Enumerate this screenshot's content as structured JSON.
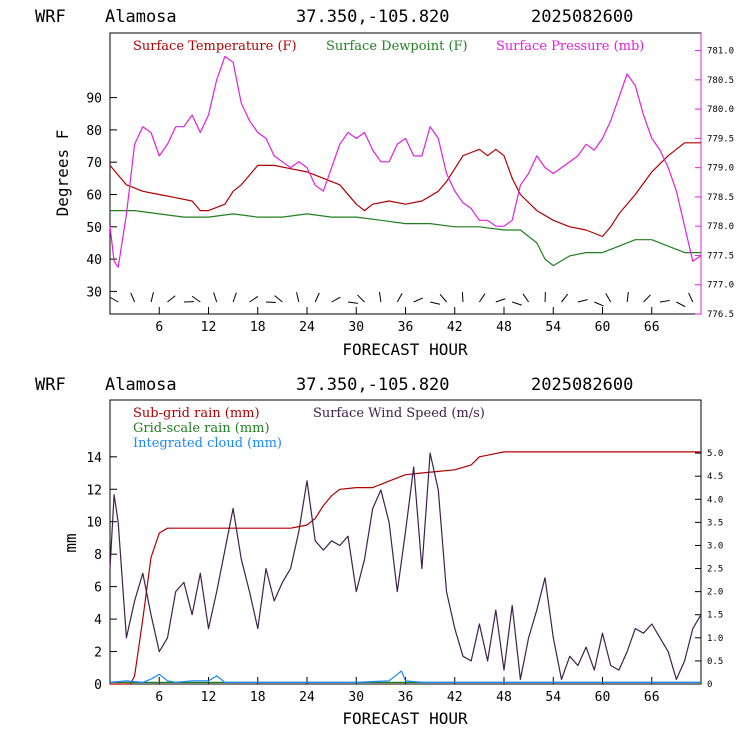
{
  "chart_data": [
    {
      "type": "line",
      "header": {
        "model": "WRF",
        "location": "Alamosa",
        "coords": "37.350,-105.820",
        "run": "2025082600"
      },
      "xlabel": "FORECAST HOUR",
      "ylabel": "Degrees F",
      "xlim": [
        0,
        72
      ],
      "ylim": [
        23,
        110
      ],
      "y2lim": [
        776.5,
        781.3
      ],
      "xticks": [
        "6",
        "12",
        "18",
        "24",
        "30",
        "36",
        "42",
        "48",
        "54",
        "60",
        "66"
      ],
      "yticks": [
        "30",
        "40",
        "50",
        "60",
        "70",
        "80",
        "90"
      ],
      "y2ticks": [
        "776.5",
        "777.0",
        "777.5",
        "778.0",
        "778.5",
        "779.0",
        "779.5",
        "780.0",
        "780.5",
        "781.0"
      ],
      "colors": {
        "temperature": "#b00000",
        "dewpoint": "#208020",
        "pressure": "#e020e0"
      },
      "series": [
        {
          "name": "Surface Temperature (F)",
          "axis": "left",
          "x": [
            0,
            1,
            2,
            4,
            6,
            8,
            10,
            11,
            12,
            14,
            15,
            16,
            17,
            18,
            20,
            22,
            24,
            26,
            28,
            30,
            31,
            32,
            34,
            36,
            38,
            40,
            41,
            42,
            43,
            44,
            45,
            46,
            47,
            48,
            49,
            50,
            52,
            54,
            56,
            58,
            60,
            61,
            62,
            64,
            66,
            68,
            70,
            72
          ],
          "y": [
            69,
            66,
            63,
            61,
            60,
            59,
            58,
            55,
            55,
            57,
            61,
            63,
            66,
            69,
            69,
            68,
            67,
            65,
            63,
            57,
            55,
            57,
            58,
            57,
            58,
            61,
            64,
            68,
            72,
            73,
            74,
            72,
            74,
            72,
            65,
            60,
            55,
            52,
            50,
            49,
            47,
            50,
            54,
            60,
            67,
            72,
            76,
            76
          ]
        },
        {
          "name": "Surface Dewpoint (F)",
          "axis": "left",
          "x": [
            0,
            3,
            6,
            9,
            12,
            15,
            18,
            21,
            24,
            27,
            30,
            33,
            36,
            39,
            42,
            45,
            48,
            50,
            52,
            53,
            54,
            56,
            58,
            60,
            62,
            64,
            66,
            68,
            70,
            72
          ],
          "y": [
            55,
            55,
            54,
            53,
            53,
            54,
            53,
            53,
            54,
            53,
            53,
            52,
            51,
            51,
            50,
            50,
            49,
            49,
            45,
            40,
            38,
            41,
            42,
            42,
            44,
            46,
            46,
            44,
            42,
            42
          ]
        },
        {
          "name": "Surface Pressure (mb)",
          "axis": "right",
          "x": [
            0,
            0.5,
            1,
            2,
            3,
            4,
            5,
            6,
            7,
            8,
            9,
            10,
            11,
            12,
            13,
            14,
            15,
            16,
            17,
            18,
            19,
            20,
            21,
            22,
            23,
            24,
            25,
            26,
            27,
            28,
            29,
            30,
            31,
            32,
            33,
            34,
            35,
            36,
            37,
            38,
            39,
            40,
            41,
            42,
            43,
            44,
            45,
            46,
            47,
            48,
            49,
            50,
            51,
            52,
            53,
            54,
            55,
            56,
            57,
            58,
            59,
            60,
            61,
            62,
            63,
            64,
            65,
            66,
            67,
            68,
            69,
            70,
            71,
            72
          ],
          "y": [
            778.0,
            777.4,
            777.3,
            778.2,
            779.4,
            779.7,
            779.6,
            779.2,
            779.4,
            779.7,
            779.7,
            779.9,
            779.6,
            779.9,
            780.5,
            780.9,
            780.8,
            780.1,
            779.8,
            779.6,
            779.5,
            779.2,
            779.1,
            779.0,
            779.1,
            779.0,
            778.7,
            778.6,
            779.0,
            779.4,
            779.6,
            779.5,
            779.6,
            779.3,
            779.1,
            779.1,
            779.4,
            779.5,
            779.2,
            779.2,
            779.7,
            779.5,
            778.9,
            778.6,
            778.4,
            778.3,
            778.1,
            778.1,
            778.0,
            778.0,
            778.1,
            778.7,
            778.9,
            779.2,
            779.0,
            778.9,
            779.0,
            779.1,
            779.2,
            779.4,
            779.3,
            779.5,
            779.8,
            780.2,
            780.6,
            780.4,
            779.9,
            779.5,
            779.3,
            779.0,
            778.6,
            778.0,
            777.4,
            777.5
          ]
        }
      ],
      "wind_barb_hours": [
        1,
        3,
        5,
        7,
        9,
        11,
        13,
        15,
        17,
        19,
        21,
        23,
        25,
        27,
        29,
        31,
        33,
        35,
        37,
        39,
        41,
        43,
        45,
        47,
        49,
        51,
        53,
        55,
        57,
        59,
        61,
        63,
        65,
        67,
        69,
        71
      ]
    },
    {
      "type": "line",
      "header": {
        "model": "WRF",
        "location": "Alamosa",
        "coords": "37.350,-105.820",
        "run": "2025082600"
      },
      "xlabel": "FORECAST HOUR",
      "ylabel": "mm",
      "xlim": [
        0,
        72
      ],
      "ylim": [
        0,
        17.5
      ],
      "y2lim": [
        0,
        6.15
      ],
      "xticks": [
        "6",
        "12",
        "18",
        "24",
        "30",
        "36",
        "42",
        "48",
        "54",
        "60",
        "66"
      ],
      "yticks": [
        "0",
        "2",
        "4",
        "6",
        "8",
        "10",
        "12",
        "14"
      ],
      "y2ticks": [
        "0",
        "0.5",
        "1.0",
        "1.5",
        "2.0",
        "2.5",
        "3.0",
        "3.5",
        "4.0",
        "4.5",
        "5.0"
      ],
      "colors": {
        "subgrid": "#b00000",
        "gridscale": "#208020",
        "cloud": "#1a88ff",
        "wind": "#40204a"
      },
      "series": [
        {
          "name": "Sub-grid rain (mm)",
          "axis": "left",
          "x": [
            0,
            1,
            2,
            2.5,
            3,
            4,
            5,
            6,
            7,
            10,
            14,
            18,
            22,
            23,
            24,
            25,
            26,
            27,
            28,
            30,
            32,
            34,
            36,
            38,
            40,
            42,
            44,
            45,
            46,
            48,
            60,
            72
          ],
          "y": [
            0,
            0,
            0,
            0,
            0.5,
            4,
            7.8,
            9.3,
            9.6,
            9.6,
            9.6,
            9.6,
            9.6,
            9.7,
            9.8,
            10.2,
            11,
            11.6,
            12,
            12.1,
            12.1,
            12.5,
            12.9,
            13,
            13.1,
            13.2,
            13.5,
            14,
            14.1,
            14.3,
            14.3,
            14.3
          ]
        },
        {
          "name": "Grid-scale rain (mm)",
          "axis": "left",
          "x": [
            0,
            72
          ],
          "y": [
            0.1,
            0.1
          ]
        },
        {
          "name": "Integrated cloud (mm)",
          "axis": "left",
          "x": [
            0,
            2,
            4,
            5,
            6,
            7,
            8,
            10,
            12,
            13,
            14,
            16,
            20,
            30,
            34,
            35,
            35.5,
            36,
            38,
            72
          ],
          "y": [
            0.1,
            0.2,
            0.1,
            0.3,
            0.6,
            0.2,
            0.1,
            0.2,
            0.2,
            0.5,
            0.1,
            0.1,
            0.1,
            0.1,
            0.2,
            0.6,
            0.8,
            0.2,
            0.1,
            0.1
          ]
        },
        {
          "name": "Surface Wind Speed (m/s)",
          "axis": "right",
          "x": [
            0,
            0.5,
            1,
            2,
            3,
            4,
            5,
            6,
            7,
            8,
            9,
            10,
            11,
            12,
            13,
            14,
            15,
            16,
            17,
            18,
            19,
            20,
            21,
            22,
            23,
            24,
            25,
            26,
            27,
            28,
            29,
            30,
            31,
            32,
            33,
            34,
            35,
            36,
            37,
            38,
            39,
            40,
            41,
            42,
            43,
            44,
            45,
            46,
            47,
            48,
            49,
            50,
            51,
            52,
            53,
            54,
            55,
            56,
            57,
            58,
            59,
            60,
            61,
            62,
            63,
            64,
            65,
            66,
            67,
            68,
            69,
            70,
            71,
            72
          ],
          "y": [
            2.5,
            4.1,
            3.5,
            1.0,
            1.8,
            2.4,
            1.5,
            0.7,
            1.0,
            2.0,
            2.2,
            1.5,
            2.4,
            1.2,
            2.0,
            2.9,
            3.8,
            2.7,
            2.0,
            1.2,
            2.5,
            1.8,
            2.2,
            2.5,
            3.3,
            4.4,
            3.1,
            2.9,
            3.1,
            3.0,
            3.2,
            2.0,
            2.7,
            3.8,
            4.2,
            3.5,
            2.0,
            3.3,
            4.7,
            2.5,
            5.0,
            4.2,
            2.0,
            1.2,
            0.6,
            0.5,
            1.3,
            0.5,
            1.6,
            0.3,
            1.7,
            0.1,
            1.0,
            1.6,
            2.3,
            1.0,
            0.1,
            0.6,
            0.4,
            0.8,
            0.3,
            1.1,
            0.4,
            0.3,
            0.7,
            1.2,
            1.1,
            1.3,
            1.0,
            0.7,
            0.1,
            0.5,
            1.2,
            1.5
          ]
        }
      ]
    }
  ]
}
